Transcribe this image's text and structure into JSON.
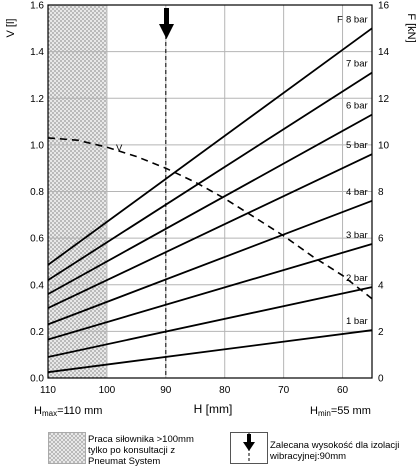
{
  "chart_data": {
    "type": "line",
    "x_axis": {
      "label": "H [mm]",
      "range": [
        110,
        55
      ],
      "ticks": [
        "110",
        "100",
        "90",
        "80",
        "70",
        "60"
      ],
      "tick_values": [
        110,
        100,
        90,
        80,
        70,
        60
      ]
    },
    "y_left": {
      "label": "V [l]",
      "range": [
        0,
        1.6
      ],
      "ticks": [
        "0.0",
        "0.2",
        "0.4",
        "0.6",
        "0.8",
        "1.0",
        "1.2",
        "1.4",
        "1.6"
      ]
    },
    "y_right": {
      "label": "F [kN]",
      "range": [
        0,
        16
      ],
      "ticks": [
        "0",
        "2",
        "4",
        "6",
        "8",
        "10",
        "12",
        "14",
        "16"
      ]
    },
    "series": [
      {
        "name": "1 bar",
        "axis": "right",
        "x": [
          110,
          55
        ],
        "y": [
          0.25,
          2.05
        ]
      },
      {
        "name": "2 bar",
        "axis": "right",
        "x": [
          110,
          55
        ],
        "y": [
          0.9,
          3.9
        ]
      },
      {
        "name": "3 bar",
        "axis": "right",
        "x": [
          110,
          55
        ],
        "y": [
          1.65,
          5.75
        ]
      },
      {
        "name": "4 bar",
        "axis": "right",
        "x": [
          110,
          55
        ],
        "y": [
          2.3,
          7.6
        ]
      },
      {
        "name": "5 bar",
        "axis": "right",
        "x": [
          110,
          55
        ],
        "y": [
          3.0,
          9.6
        ]
      },
      {
        "name": "6 bar",
        "axis": "right",
        "x": [
          110,
          55
        ],
        "y": [
          3.6,
          11.3
        ]
      },
      {
        "name": "7 bar",
        "axis": "right",
        "x": [
          110,
          55
        ],
        "y": [
          4.2,
          13.1
        ]
      },
      {
        "name": "8 bar",
        "axis": "right",
        "x": [
          110,
          55
        ],
        "y": [
          4.85,
          15.0
        ]
      },
      {
        "name": "V",
        "axis": "left",
        "style": "dashed",
        "x": [
          110,
          105,
          100,
          95,
          90,
          85,
          80,
          75,
          70,
          65,
          60,
          55
        ],
        "y": [
          1.03,
          1.02,
          0.99,
          0.95,
          0.9,
          0.84,
          0.77,
          0.69,
          0.61,
          0.52,
          0.44,
          0.34
        ]
      }
    ],
    "hatched_region": {
      "x_from": 110,
      "x_to": 100
    },
    "recommended_height": {
      "x": 90
    },
    "grid": true
  },
  "annotations": {
    "v_curve_label": "V",
    "h_max_prefix": "H",
    "h_max_sub": "max",
    "h_max_value": "=110 mm",
    "h_min_prefix": "H",
    "h_min_sub": "min",
    "h_min_value": "=55 mm"
  },
  "legend": {
    "hatch_text_1": "Praca siłownika >100mm",
    "hatch_text_2": "tylko po konsultacji z",
    "hatch_text_3": "Pneumat System",
    "arrow_text_1": "Zalecana wysokość dla izolacji",
    "arrow_text_2": "wibracyjnej:90mm"
  },
  "colors": {
    "line": "#000000",
    "grid": "#b5b5b5",
    "hatch_bg": "#e8e8e8",
    "hatch_dot": "#9a9a9a"
  }
}
